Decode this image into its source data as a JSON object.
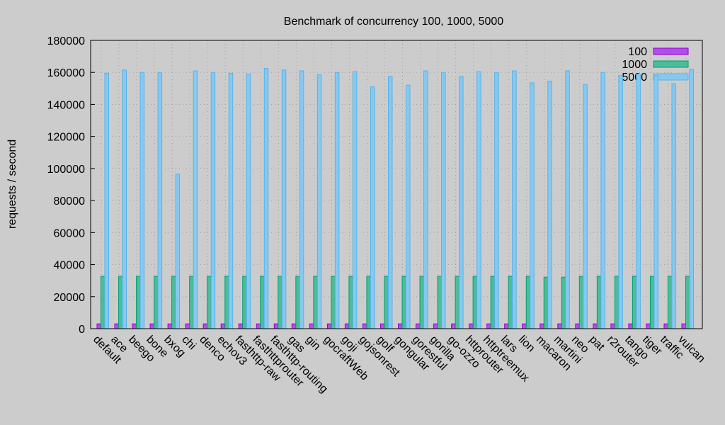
{
  "chart_data": {
    "type": "bar",
    "title": "Benchmark of concurrency 100, 1000, 5000",
    "xlabel": "",
    "ylabel": "requests / second",
    "ylim": [
      0,
      180000
    ],
    "yticks": [
      "0",
      "20000",
      "40000",
      "60000",
      "80000",
      "100000",
      "120000",
      "140000",
      "160000",
      "180000"
    ],
    "grid": true,
    "legend_position": "top-right",
    "categories": [
      "default",
      "ace",
      "beego",
      "bone",
      "bxog",
      "chi",
      "denco",
      "echov3",
      "fasthttp-raw",
      "fasthttprouter",
      "fasthttp-routing",
      "gas",
      "gin",
      "gocraftWeb",
      "goji",
      "gojsonrest",
      "golf",
      "gongular",
      "gorestful",
      "gorilla",
      "go-ozzo",
      "httprouter",
      "httptreemux",
      "lars",
      "lion",
      "macaron",
      "martini",
      "neo",
      "pat",
      "r2router",
      "tango",
      "tiger",
      "traffic",
      "vulcan"
    ],
    "series": [
      {
        "name": "100",
        "color": "#b04ee8",
        "edge": "#9400d3",
        "values": [
          3000,
          3000,
          3000,
          3000,
          3000,
          3000,
          3000,
          3000,
          3000,
          3000,
          3000,
          3000,
          3000,
          3000,
          3000,
          3000,
          3000,
          3000,
          3000,
          3000,
          3000,
          3000,
          3000,
          3000,
          3000,
          3000,
          3000,
          3000,
          3000,
          3000,
          3000,
          3000,
          3000,
          3000
        ]
      },
      {
        "name": "1000",
        "color": "#4cbc9a",
        "edge": "#009e73",
        "values": [
          32700,
          32700,
          32700,
          32700,
          32700,
          32700,
          32700,
          32700,
          32700,
          32700,
          32700,
          32700,
          32700,
          32700,
          32700,
          32700,
          32700,
          32700,
          32700,
          32700,
          32700,
          32700,
          32700,
          32700,
          32700,
          32200,
          32200,
          32700,
          32700,
          32700,
          32700,
          32700,
          32700,
          32700
        ]
      },
      {
        "name": "5000",
        "color": "#88c8f0",
        "edge": "#56b4e9",
        "values": [
          159500,
          161500,
          160000,
          160000,
          96500,
          161000,
          160000,
          159500,
          159000,
          162500,
          161500,
          161000,
          158500,
          160000,
          160500,
          151000,
          157500,
          152000,
          161000,
          160000,
          157500,
          160500,
          160000,
          161000,
          153500,
          154500,
          161000,
          152500,
          160000,
          158000,
          159000,
          158000,
          153000,
          162000
        ]
      }
    ]
  }
}
